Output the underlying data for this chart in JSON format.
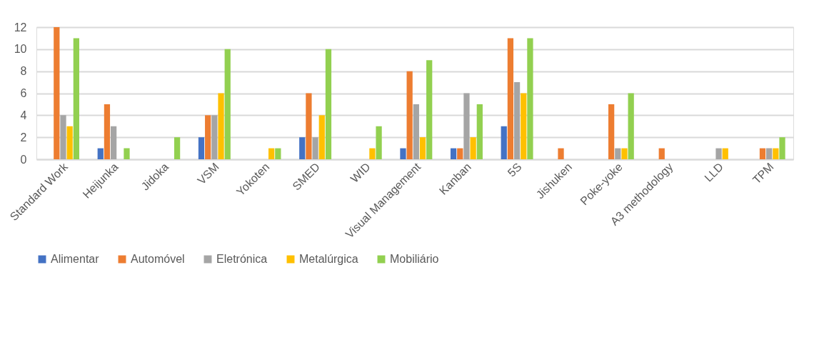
{
  "chart_data": {
    "type": "bar",
    "categories": [
      "Standard Work",
      "Heijunka",
      "Jidoka",
      "VSM",
      "Yokoten",
      "SMED",
      "WID",
      "Visual Management",
      "Kanban",
      "5S",
      "Jishuken",
      "Poke-yoke",
      "A3 methodology",
      "LLD",
      "TPM"
    ],
    "series": [
      {
        "name": "Alimentar",
        "color": "#4472c4",
        "values": [
          0,
          1,
          0,
          2,
          0,
          2,
          0,
          1,
          1,
          3,
          0,
          0,
          0,
          0,
          0
        ]
      },
      {
        "name": "Automóvel",
        "color": "#ed7d31",
        "values": [
          12,
          5,
          0,
          4,
          0,
          6,
          0,
          8,
          1,
          11,
          1,
          5,
          1,
          0,
          1
        ]
      },
      {
        "name": "Eletrónica",
        "color": "#a5a5a5",
        "values": [
          4,
          3,
          0,
          4,
          0,
          2,
          0,
          5,
          6,
          7,
          0,
          1,
          0,
          1,
          1
        ]
      },
      {
        "name": "Metalúrgica",
        "color": "#ffc000",
        "values": [
          3,
          0,
          0,
          6,
          1,
          4,
          1,
          2,
          2,
          6,
          0,
          1,
          0,
          1,
          1
        ]
      },
      {
        "name": "Mobiliário",
        "color": "#92d050",
        "values": [
          11,
          1,
          2,
          10,
          1,
          10,
          3,
          9,
          5,
          11,
          0,
          6,
          0,
          0,
          2
        ]
      }
    ],
    "ylim": [
      0,
      12
    ],
    "yticks": [
      0,
      2,
      4,
      6,
      8,
      10,
      12
    ],
    "grid": "y",
    "legend": "bottom"
  }
}
